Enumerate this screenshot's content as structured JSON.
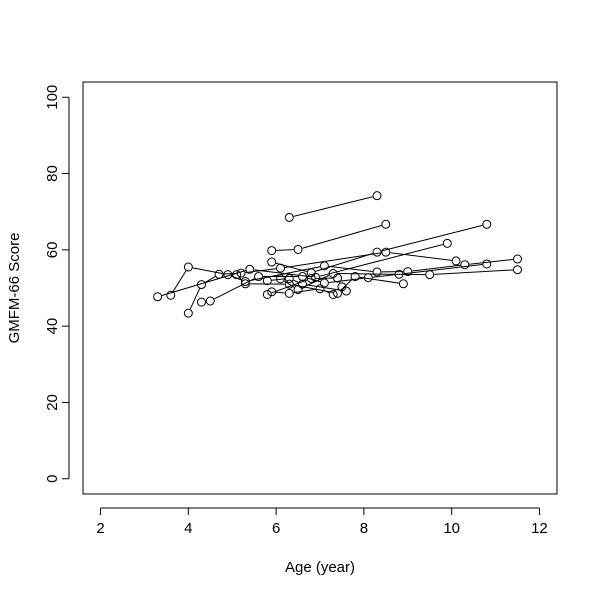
{
  "chart_data": {
    "type": "line",
    "title": "",
    "xlabel": "Age (year)",
    "ylabel": "GMFM-66 Score",
    "xlim": [
      1.6,
      12.4
    ],
    "ylim": [
      -4,
      104
    ],
    "xticks": [
      2,
      4,
      6,
      8,
      10,
      12
    ],
    "yticks": [
      0,
      20,
      40,
      60,
      80,
      100
    ],
    "grid": false,
    "legend": "none",
    "series": [
      {
        "x": [
          6.3,
          8.3
        ],
        "y": [
          68.5,
          74.2
        ]
      },
      {
        "x": [
          5.9,
          6.5,
          8.5
        ],
        "y": [
          59.8,
          60.1,
          66.7
        ]
      },
      {
        "x": [
          5.9,
          6.8,
          8.3,
          10.8
        ],
        "y": [
          56.8,
          54.0,
          59.4,
          66.7
        ]
      },
      {
        "x": [
          3.3,
          5.4,
          6.9,
          9.9
        ],
        "y": [
          47.7,
          54.9,
          52.8,
          61.7
        ]
      },
      {
        "x": [
          4.0,
          4.3,
          4.7,
          5.2,
          6.1,
          8.5,
          10.1
        ],
        "y": [
          43.4,
          50.9,
          53.6,
          53.9,
          55.2,
          59.4,
          57.1
        ]
      },
      {
        "x": [
          3.6,
          4.0,
          4.9,
          5.3,
          7.1,
          8.3,
          9.0,
          10.3,
          11.5
        ],
        "y": [
          48.1,
          55.5,
          53.5,
          51.7,
          55.8,
          54.2,
          54.3,
          56.1,
          57.6
        ]
      },
      {
        "x": [
          4.3,
          4.5,
          5.6,
          6.6,
          7.1,
          8.1,
          8.8,
          10.8
        ],
        "y": [
          46.3,
          46.6,
          53.0,
          53.0,
          51.3,
          52.7,
          53.6,
          56.3
        ]
      },
      {
        "x": [
          5.1,
          5.3,
          6.3,
          7.4,
          7.8,
          8.9
        ],
        "y": [
          53.5,
          51.1,
          51.0,
          48.6,
          53.0,
          51.1
        ]
      },
      {
        "x": [
          6.1,
          6.5,
          7.3,
          9.5,
          11.5
        ],
        "y": [
          52.4,
          49.6,
          53.8,
          53.5,
          54.8
        ]
      },
      {
        "x": [
          5.8,
          6.3,
          6.6,
          7.6
        ],
        "y": [
          51.9,
          52.5,
          51.0,
          49.2
        ]
      },
      {
        "x": [
          5.9,
          6.3,
          7.0,
          7.3
        ],
        "y": [
          49.0,
          48.6,
          49.8,
          48.3
        ]
      },
      {
        "x": [
          5.8,
          6.8,
          7.4,
          7.5
        ],
        "y": [
          48.3,
          52.5,
          52.6,
          50.3
        ]
      }
    ]
  }
}
